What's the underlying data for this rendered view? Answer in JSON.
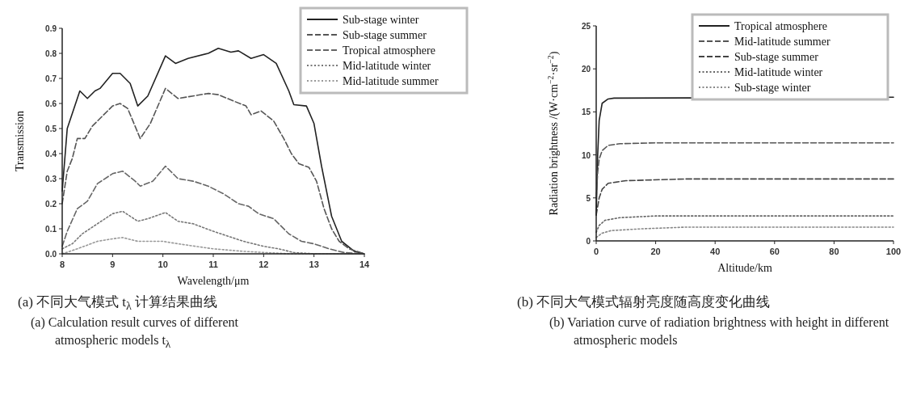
{
  "chart_data": [
    {
      "type": "line",
      "title": "(a)  不同大气模式 t$_{λ}$ 计算结果曲线",
      "subtitle": "(a) Calculation result curves of different atmospheric models t$_{λ}$",
      "xlabel": "Wavelength/μm",
      "ylabel": "Transmission",
      "xlim": [
        8,
        14
      ],
      "ylim": [
        0,
        0.9
      ],
      "xticks": [
        8,
        9,
        10,
        11,
        12,
        13,
        14
      ],
      "yticks": [
        {
          "value": 0,
          "label": "0.0"
        },
        0.1,
        0.2,
        0.3,
        0.4,
        0.5,
        0.6,
        0.7,
        0.8,
        0.9
      ],
      "grid": false,
      "legend": "top right",
      "series": [
        {
          "name": "Sub-stage winter",
          "color": "#222222",
          "line_style": "solid",
          "x": [
            8.0,
            8.1,
            8.35,
            8.5,
            8.65,
            8.75,
            9.0,
            9.15,
            9.35,
            9.5,
            9.7,
            10.05,
            10.25,
            10.5,
            10.9,
            11.1,
            11.35,
            11.5,
            11.75,
            12.0,
            12.25,
            12.5,
            12.6,
            12.85,
            13.0,
            13.15,
            13.35,
            13.55,
            13.8,
            14.0
          ],
          "values": [
            0.25,
            0.5,
            0.65,
            0.62,
            0.65,
            0.66,
            0.72,
            0.72,
            0.68,
            0.59,
            0.63,
            0.79,
            0.76,
            0.78,
            0.8,
            0.82,
            0.805,
            0.81,
            0.78,
            0.795,
            0.76,
            0.65,
            0.595,
            0.59,
            0.52,
            0.35,
            0.15,
            0.05,
            0.01,
            0.0
          ]
        },
        {
          "name": "Sub-stage summer",
          "color": "#555555",
          "line_style": "dashed",
          "x": [
            8.0,
            8.1,
            8.2,
            8.3,
            8.45,
            8.6,
            8.8,
            9.0,
            9.15,
            9.3,
            9.55,
            9.75,
            10.05,
            10.3,
            10.6,
            10.9,
            11.1,
            11.4,
            11.65,
            11.75,
            11.95,
            12.2,
            12.4,
            12.55,
            12.7,
            12.9,
            13.05,
            13.2,
            13.35,
            13.5,
            13.7,
            14.0
          ],
          "values": [
            0.2,
            0.33,
            0.38,
            0.46,
            0.46,
            0.51,
            0.55,
            0.59,
            0.6,
            0.58,
            0.46,
            0.52,
            0.66,
            0.62,
            0.63,
            0.64,
            0.635,
            0.61,
            0.59,
            0.555,
            0.57,
            0.53,
            0.46,
            0.4,
            0.36,
            0.345,
            0.29,
            0.18,
            0.1,
            0.05,
            0.02,
            0.0
          ]
        },
        {
          "name": "Tropical atmosphere",
          "color": "#666666",
          "line_style": "dashed",
          "x": [
            8.0,
            8.1,
            8.3,
            8.5,
            8.7,
            9.0,
            9.2,
            9.45,
            9.55,
            9.8,
            10.05,
            10.3,
            10.6,
            10.9,
            11.2,
            11.5,
            11.7,
            11.9,
            12.2,
            12.5,
            12.75,
            13.0,
            13.3,
            13.6,
            14.0
          ],
          "values": [
            0.03,
            0.09,
            0.18,
            0.21,
            0.28,
            0.32,
            0.33,
            0.29,
            0.27,
            0.29,
            0.35,
            0.3,
            0.29,
            0.27,
            0.24,
            0.2,
            0.19,
            0.16,
            0.14,
            0.08,
            0.05,
            0.04,
            0.02,
            0.005,
            0.0
          ]
        },
        {
          "name": "Mid-latitude winter",
          "color": "#777777",
          "line_style": "dotted",
          "x": [
            8.0,
            8.2,
            8.4,
            8.7,
            9.0,
            9.2,
            9.5,
            9.7,
            10.05,
            10.3,
            10.6,
            11.0,
            11.3,
            11.6,
            12.0,
            12.3,
            12.6,
            13.0,
            14.0
          ],
          "values": [
            0.02,
            0.04,
            0.08,
            0.12,
            0.16,
            0.17,
            0.13,
            0.14,
            0.165,
            0.13,
            0.12,
            0.09,
            0.07,
            0.05,
            0.03,
            0.02,
            0.005,
            0.0,
            0.0
          ]
        },
        {
          "name": "Mid-latitude summer",
          "color": "#999999",
          "line_style": "dotted",
          "x": [
            8.0,
            8.3,
            8.7,
            9.0,
            9.2,
            9.5,
            10.0,
            10.3,
            11.0,
            11.6,
            12.5,
            14.0
          ],
          "values": [
            0.0,
            0.02,
            0.05,
            0.06,
            0.065,
            0.05,
            0.05,
            0.04,
            0.02,
            0.01,
            0.0,
            0.0
          ]
        }
      ]
    },
    {
      "type": "line",
      "title": "(b)  不同大气模式辐射亮度随高度变化曲线",
      "subtitle": "(b) Variation curve of radiation brightness with height in different atmospheric models",
      "xlabel": "Altitude/km",
      "ylabel": "Radiation brightness /(W·cm$^{−2}$·sr$^{−2}$)",
      "xlim": [
        0,
        100
      ],
      "ylim": [
        0,
        25
      ],
      "xticks": [
        0,
        20,
        40,
        60,
        80,
        100
      ],
      "yticks": [
        0,
        5,
        10,
        15,
        20,
        25
      ],
      "grid": false,
      "legend": "top right",
      "series": [
        {
          "name": "Tropical atmosphere",
          "color": "#222222",
          "line_style": "solid",
          "x": [
            0,
            0.5,
            1,
            2,
            4,
            6,
            100
          ],
          "values": [
            3,
            10,
            14,
            16,
            16.5,
            16.6,
            16.7
          ]
        },
        {
          "name": "Mid-latitude summer",
          "color": "#555555",
          "line_style": "dashed",
          "x": [
            0,
            0.5,
            1,
            2,
            4,
            8,
            20,
            100
          ],
          "values": [
            5,
            8,
            9.5,
            10.5,
            11.1,
            11.3,
            11.4,
            11.4
          ]
        },
        {
          "name": "Sub-stage summer",
          "color": "#444444",
          "line_style": "dashed",
          "x": [
            0,
            1,
            2,
            4,
            10,
            30,
            100
          ],
          "values": [
            3,
            5,
            6,
            6.7,
            7.0,
            7.2,
            7.2
          ]
        },
        {
          "name": "Mid-latitude winter",
          "color": "#666666",
          "line_style": "dotted",
          "x": [
            0,
            1,
            3,
            8,
            20,
            100
          ],
          "values": [
            1,
            1.8,
            2.4,
            2.7,
            2.9,
            2.9
          ]
        },
        {
          "name": "Sub-stage winter",
          "color": "#888888",
          "line_style": "dotted",
          "x": [
            0,
            2,
            5,
            15,
            30,
            100
          ],
          "values": [
            0.4,
            0.9,
            1.2,
            1.4,
            1.6,
            1.6
          ]
        }
      ]
    }
  ]
}
